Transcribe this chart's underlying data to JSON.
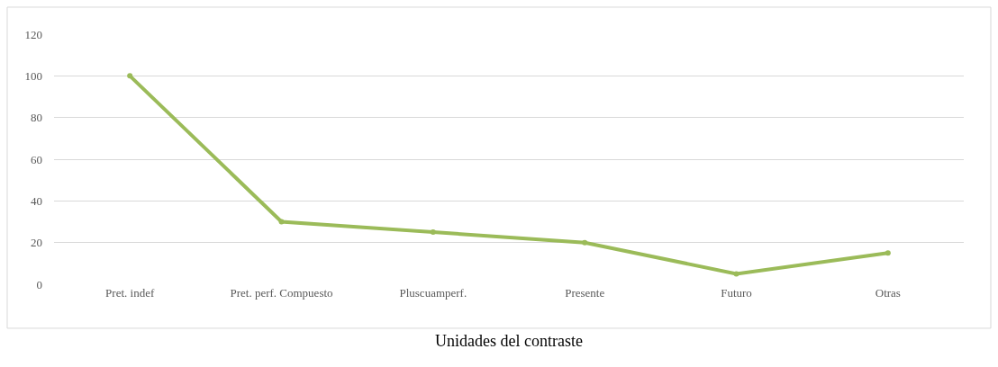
{
  "chart_data": {
    "type": "line",
    "xlabel": "Unidades del contraste",
    "categories": [
      "Pret. indef",
      "Pret. perf. Compuesto",
      "Pluscuamperf.",
      "Presente",
      "Futuro",
      "Otras"
    ],
    "series": [
      {
        "color": "#9bbb59",
        "values": [
          100,
          30,
          25,
          20,
          5,
          15
        ]
      }
    ],
    "ylim": [
      0,
      120
    ],
    "yticks": [
      0,
      20,
      40,
      60,
      80,
      100,
      120
    ],
    "grid": "y",
    "marker": "circle",
    "line_style": "solid"
  }
}
